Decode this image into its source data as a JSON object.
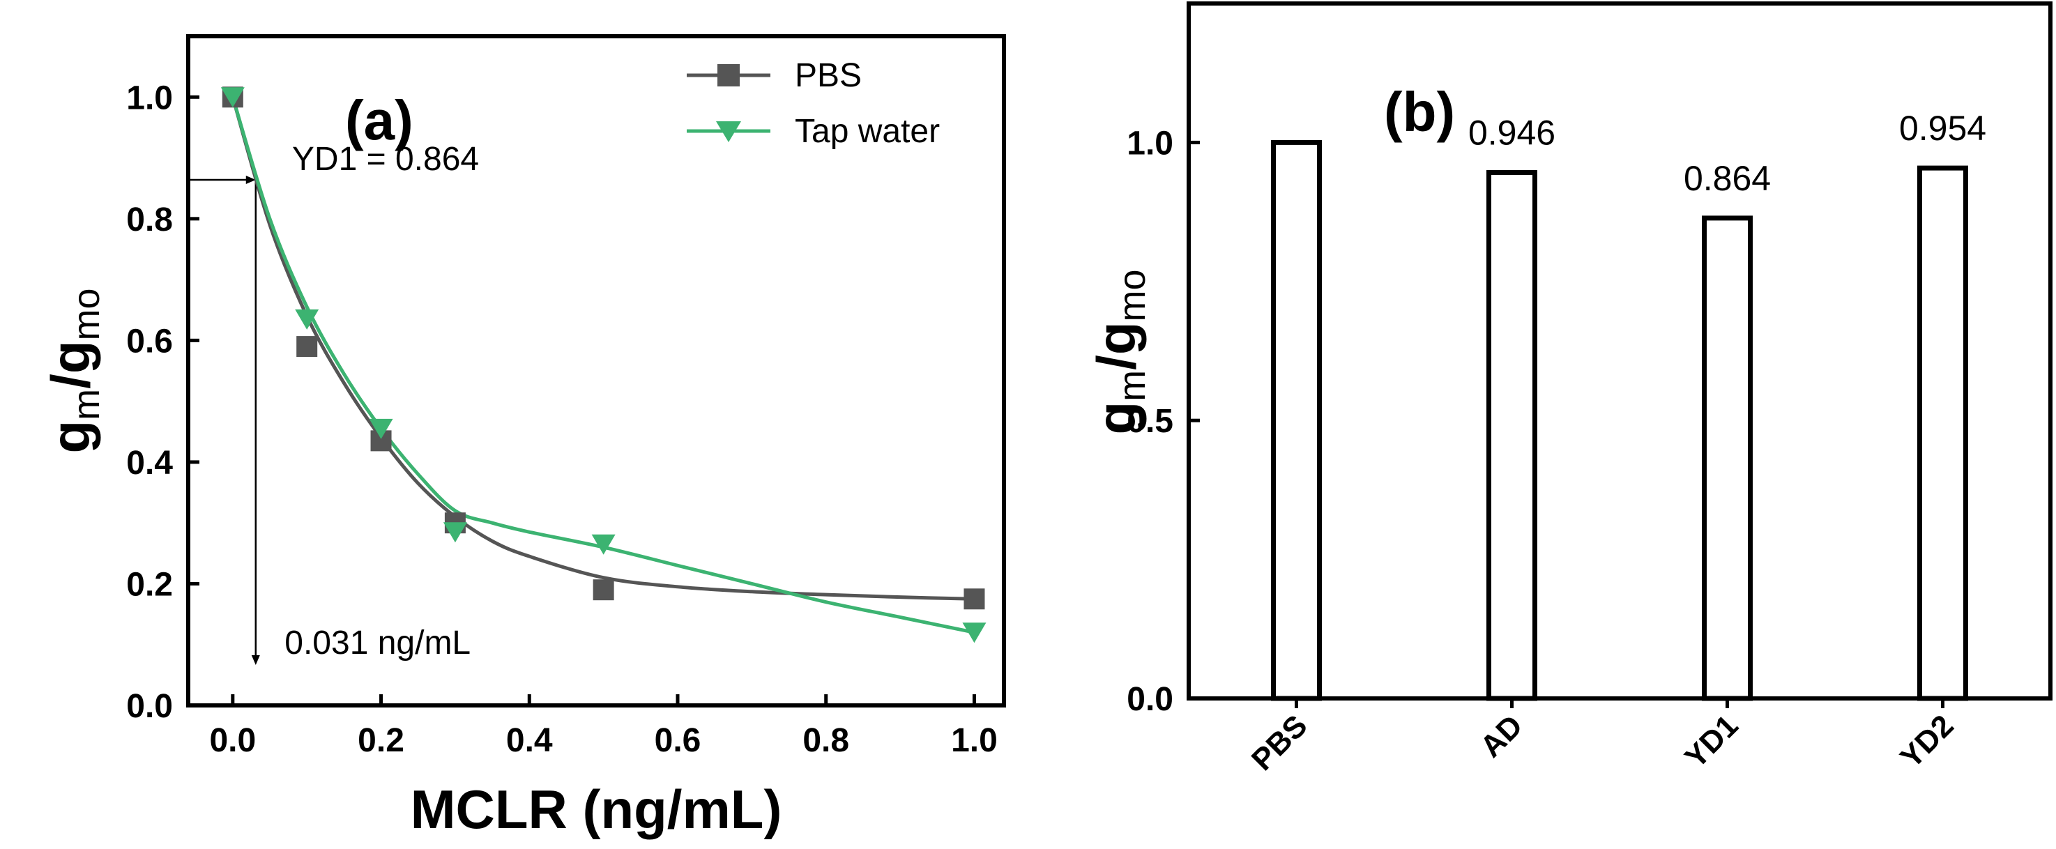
{
  "colors": {
    "pbs": "#555555",
    "tap": "#3cb371",
    "axis": "#000000",
    "bar_fill": "#ffffff"
  },
  "chart_data": [
    {
      "type": "line",
      "panel_label": "(a)",
      "title": "",
      "xlabel": "MCLR (ng/mL)",
      "ylabel": {
        "main": "g",
        "sub1": "m",
        "mid": "/g",
        "sub2": "mo"
      },
      "xlim": [
        -0.06,
        1.04
      ],
      "ylim": [
        0.0,
        1.1
      ],
      "xticks": [
        0.0,
        0.2,
        0.4,
        0.6,
        0.8,
        1.0
      ],
      "xtick_labels": [
        "0.0",
        "0.2",
        "0.4",
        "0.6",
        "0.8",
        "1.0"
      ],
      "yticks": [
        0.0,
        0.2,
        0.4,
        0.6,
        0.8,
        1.0
      ],
      "ytick_labels": [
        "0.0",
        "0.2",
        "0.4",
        "0.6",
        "0.8",
        "1.0"
      ],
      "legend_position": "top-right",
      "series": [
        {
          "name": "PBS",
          "marker": "square",
          "color": "#555555",
          "x": [
            0.0,
            0.1,
            0.2,
            0.3,
            0.5,
            1.0
          ],
          "y": [
            1.0,
            0.59,
            0.435,
            0.3,
            0.19,
            0.175
          ],
          "fit_x": [
            0.0,
            0.05,
            0.1,
            0.15,
            0.2,
            0.25,
            0.3,
            0.35,
            0.4,
            0.5,
            0.6,
            0.7,
            0.8,
            0.9,
            1.0
          ],
          "fit_y": [
            1.0,
            0.79,
            0.64,
            0.53,
            0.44,
            0.365,
            0.31,
            0.27,
            0.245,
            0.21,
            0.195,
            0.187,
            0.182,
            0.178,
            0.175
          ]
        },
        {
          "name": "Tap water",
          "marker": "triangle-down",
          "color": "#3cb371",
          "x": [
            0.0,
            0.1,
            0.2,
            0.3,
            0.5,
            1.0
          ],
          "y": [
            1.0,
            0.635,
            0.455,
            0.285,
            0.265,
            0.12
          ],
          "fit_x": [
            0.0,
            0.05,
            0.1,
            0.15,
            0.2,
            0.25,
            0.3,
            0.35,
            0.4,
            0.5,
            0.6,
            0.7,
            0.8,
            0.9,
            1.0
          ],
          "fit_y": [
            1.0,
            0.8,
            0.655,
            0.545,
            0.455,
            0.38,
            0.32,
            0.3,
            0.285,
            0.26,
            0.23,
            0.2,
            0.17,
            0.145,
            0.12
          ]
        }
      ],
      "annotations": [
        {
          "text": "YD1 = 0.864",
          "x": 0.08,
          "y": 0.88
        },
        {
          "text": "0.031 ng/mL",
          "x": 0.07,
          "y": 0.085
        }
      ],
      "guide": {
        "x": 0.031,
        "y": 0.864,
        "x_from": -0.06
      }
    },
    {
      "type": "bar",
      "panel_label": "(b)",
      "title": "",
      "xlabel": "",
      "ylabel": {
        "main": "g",
        "sub1": "m",
        "mid": "/g",
        "sub2": "mo"
      },
      "ylim": [
        0.0,
        1.25
      ],
      "yticks": [
        0.0,
        0.5,
        1.0
      ],
      "ytick_labels": [
        "0.0",
        "0.5",
        "1.0"
      ],
      "categories": [
        "PBS",
        "AD",
        "YD1",
        "YD2"
      ],
      "values": [
        1.0,
        0.946,
        0.864,
        0.954
      ],
      "data_labels": [
        "",
        "0.946",
        "0.864",
        "0.954"
      ]
    }
  ]
}
